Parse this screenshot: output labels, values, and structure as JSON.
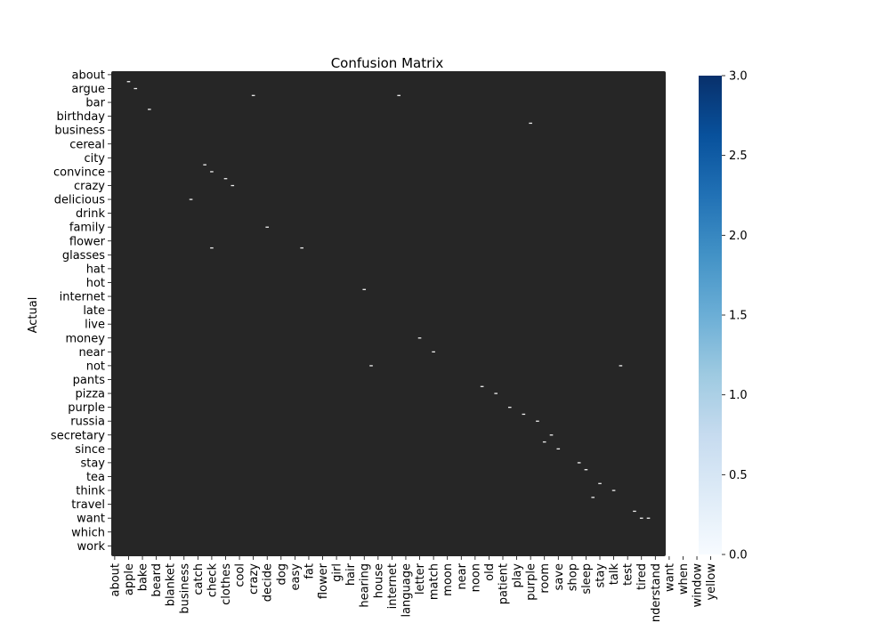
{
  "chart_data": {
    "type": "heatmap",
    "title": "Confusion Matrix",
    "ylabel": "Actual",
    "xlabel": "",
    "y_tick_labels": [
      "about",
      "argue",
      "bar",
      "birthday",
      "business",
      "cereal",
      "city",
      "convince",
      "crazy",
      "delicious",
      "drink",
      "family",
      "flower",
      "glasses",
      "hat",
      "hot",
      "internet",
      "late",
      "live",
      "money",
      "near",
      "not",
      "pants",
      "pizza",
      "purple",
      "russia",
      "secretary",
      "since",
      "stay",
      "tea",
      "think",
      "travel",
      "want",
      "which",
      "work"
    ],
    "x_tick_labels": [
      "about",
      "apple",
      "bake",
      "beard",
      "blanket",
      "business",
      "catch",
      "check",
      "clothes",
      "cool",
      "crazy",
      "decide",
      "dog",
      "easy",
      "fat",
      "flower",
      "girl",
      "hair",
      "hearing",
      "house",
      "internet",
      "language",
      "letter",
      "match",
      "moon",
      "near",
      "noon",
      "old",
      "patient",
      "play",
      "purple",
      "room",
      "save",
      "shop",
      "sleep",
      "stay",
      "talk",
      "test",
      "tired",
      "understand",
      "want",
      "when",
      "window",
      "yellow"
    ],
    "n_rows": 70,
    "n_cols": 80,
    "colorbar": {
      "min": 0.0,
      "max": 3.0,
      "ticks": [
        0.0,
        0.5,
        1.0,
        1.5,
        2.0,
        2.5,
        3.0
      ],
      "colormap": "Blues"
    },
    "cell_color_dark": "#262626",
    "nonzero_cells": [
      {
        "row": 1,
        "col": 2,
        "value": 0
      },
      {
        "row": 2,
        "col": 3,
        "value": 0
      },
      {
        "row": 3,
        "col": 20,
        "value": 0
      },
      {
        "row": 3,
        "col": 41,
        "value": 0
      },
      {
        "row": 5,
        "col": 5,
        "value": 0
      },
      {
        "row": 7,
        "col": 60,
        "value": 0
      },
      {
        "row": 13,
        "col": 13,
        "value": 0
      },
      {
        "row": 14,
        "col": 14,
        "value": 0
      },
      {
        "row": 15,
        "col": 16,
        "value": 0
      },
      {
        "row": 16,
        "col": 17,
        "value": 0
      },
      {
        "row": 18,
        "col": 11,
        "value": 0
      },
      {
        "row": 22,
        "col": 22,
        "value": 0
      },
      {
        "row": 25,
        "col": 14,
        "value": 0
      },
      {
        "row": 25,
        "col": 27,
        "value": 0
      },
      {
        "row": 31,
        "col": 36,
        "value": 0
      },
      {
        "row": 38,
        "col": 44,
        "value": 0
      },
      {
        "row": 40,
        "col": 46,
        "value": 0
      },
      {
        "row": 42,
        "col": 37,
        "value": 0
      },
      {
        "row": 42,
        "col": 73,
        "value": 0
      },
      {
        "row": 45,
        "col": 53,
        "value": 0
      },
      {
        "row": 46,
        "col": 55,
        "value": 0
      },
      {
        "row": 48,
        "col": 57,
        "value": 0
      },
      {
        "row": 49,
        "col": 59,
        "value": 0
      },
      {
        "row": 50,
        "col": 61,
        "value": 0
      },
      {
        "row": 52,
        "col": 63,
        "value": 0
      },
      {
        "row": 53,
        "col": 62,
        "value": 0
      },
      {
        "row": 54,
        "col": 64,
        "value": 0
      },
      {
        "row": 56,
        "col": 67,
        "value": 0
      },
      {
        "row": 57,
        "col": 68,
        "value": 0
      },
      {
        "row": 59,
        "col": 70,
        "value": 0
      },
      {
        "row": 60,
        "col": 72,
        "value": 0
      },
      {
        "row": 61,
        "col": 69,
        "value": 0
      },
      {
        "row": 63,
        "col": 75,
        "value": 0
      },
      {
        "row": 64,
        "col": 76,
        "value": 0
      },
      {
        "row": 64,
        "col": 77,
        "value": 0
      }
    ]
  }
}
